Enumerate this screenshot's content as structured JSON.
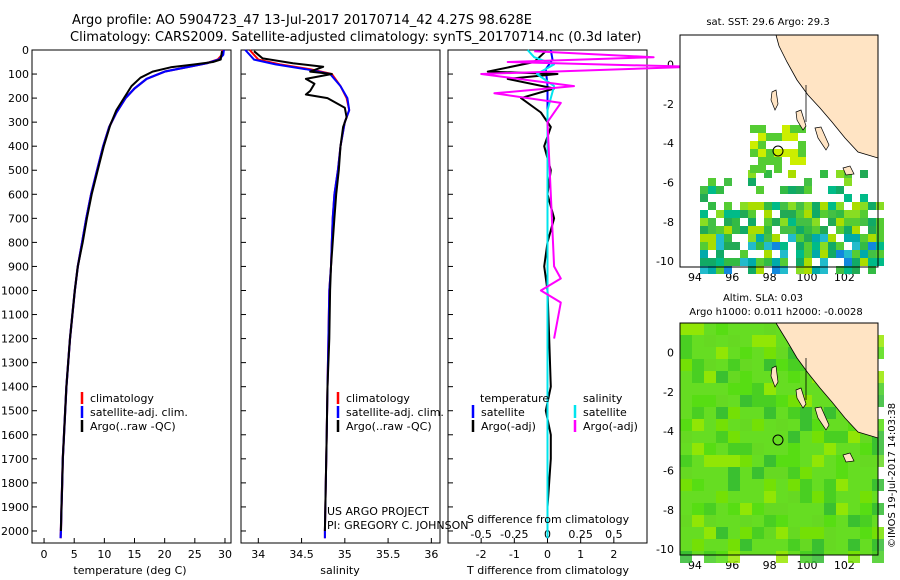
{
  "header": {
    "title_line1": "Argo profile: AO 5904723_47 13-Jul-2017 20170714_42 4.27S 98.628E",
    "title_line2": "Climatology: CARS2009. Satellite-adjusted climatology: synTS_20170714.nc (0.3d later)"
  },
  "colors": {
    "climatology": "#ff0000",
    "satellite_temp": "#0000ff",
    "argo": "#000000",
    "satellite_sal": "#00e5ee",
    "argo_sal_diff": "#ff00ff",
    "land": "#ffe4c4"
  },
  "chart_data": [
    {
      "type": "line",
      "panel": "temperature",
      "xlabel": "temperature (deg C)",
      "xticks": [
        0,
        5,
        10,
        15,
        20,
        25,
        30
      ],
      "xlim": [
        -2,
        31
      ],
      "ylim": [
        2050,
        0
      ],
      "yticks": [
        0,
        100,
        200,
        300,
        400,
        500,
        600,
        700,
        800,
        900,
        1000,
        1100,
        1200,
        1300,
        1400,
        1500,
        1600,
        1700,
        1800,
        1900,
        2000
      ],
      "legend": [
        "climatology",
        "satellite-adj. clim.",
        "Argo(..raw -QC)"
      ],
      "series": [
        {
          "name": "climatology",
          "points": [
            [
              29.6,
              0
            ],
            [
              29.5,
              20
            ],
            [
              28.8,
              40
            ],
            [
              27,
              55
            ],
            [
              24,
              70
            ],
            [
              20,
              90
            ],
            [
              17,
              120
            ],
            [
              15,
              160
            ],
            [
              13.5,
              200
            ],
            [
              12,
              260
            ],
            [
              10.8,
              320
            ],
            [
              9.8,
              400
            ],
            [
              8.8,
              500
            ],
            [
              7.8,
              600
            ],
            [
              7,
              700
            ],
            [
              6.3,
              800
            ],
            [
              5.6,
              900
            ],
            [
              5.1,
              1000
            ],
            [
              4.7,
              1100
            ],
            [
              4.3,
              1200
            ],
            [
              4,
              1300
            ],
            [
              3.7,
              1400
            ],
            [
              3.5,
              1500
            ],
            [
              3.3,
              1600
            ],
            [
              3.1,
              1700
            ],
            [
              3,
              1800
            ],
            [
              2.9,
              1900
            ],
            [
              2.8,
              2000
            ],
            [
              2.75,
              2030
            ]
          ]
        },
        {
          "name": "satellite-adj. clim.",
          "points": [
            [
              29.8,
              0
            ],
            [
              29.7,
              20
            ],
            [
              29,
              40
            ],
            [
              27,
              55
            ],
            [
              24,
              70
            ],
            [
              20,
              90
            ],
            [
              17,
              120
            ],
            [
              15,
              160
            ],
            [
              13.5,
              200
            ],
            [
              12,
              260
            ],
            [
              10.8,
              320
            ],
            [
              9.8,
              400
            ],
            [
              8.8,
              500
            ],
            [
              7.8,
              600
            ],
            [
              7,
              700
            ],
            [
              6.3,
              800
            ],
            [
              5.6,
              900
            ],
            [
              5.1,
              1000
            ],
            [
              4.7,
              1100
            ],
            [
              4.3,
              1200
            ],
            [
              4,
              1300
            ],
            [
              3.7,
              1400
            ],
            [
              3.5,
              1500
            ],
            [
              3.3,
              1600
            ],
            [
              3.1,
              1700
            ],
            [
              3,
              1800
            ],
            [
              2.9,
              1900
            ],
            [
              2.8,
              2000
            ],
            [
              2.75,
              2030
            ]
          ]
        },
        {
          "name": "Argo(..raw -QC)",
          "points": [
            [
              29.5,
              5
            ],
            [
              29.4,
              20
            ],
            [
              29.3,
              40
            ],
            [
              28,
              50
            ],
            [
              25,
              60
            ],
            [
              21,
              72
            ],
            [
              18,
              90
            ],
            [
              16,
              115
            ],
            [
              14.5,
              150
            ],
            [
              13.5,
              190
            ],
            [
              12,
              250
            ],
            [
              11,
              310
            ],
            [
              9.9,
              400
            ],
            [
              8.9,
              500
            ],
            [
              7.9,
              600
            ],
            [
              7.1,
              700
            ],
            [
              6.4,
              800
            ],
            [
              5.6,
              900
            ],
            [
              5.1,
              1000
            ],
            [
              4.7,
              1100
            ],
            [
              4.3,
              1200
            ],
            [
              4,
              1300
            ],
            [
              3.7,
              1400
            ],
            [
              3.5,
              1500
            ],
            [
              3.3,
              1600
            ],
            [
              3.1,
              1700
            ],
            [
              3,
              1800
            ],
            [
              2.9,
              1900
            ],
            [
              2.8,
              2000
            ]
          ]
        }
      ]
    },
    {
      "type": "line",
      "panel": "salinity",
      "xlabel": "salinity",
      "xticks": [
        34,
        34.5,
        35,
        35.5,
        36
      ],
      "xlim": [
        33.8,
        36.1
      ],
      "ylim": [
        2050,
        0
      ],
      "legend": [
        "climatology",
        "satellite-adj. clim.",
        "Argo(..raw -QC)"
      ],
      "annotation": [
        "US ARGO PROJECT",
        "PI: GREGORY C. JOHNSON"
      ],
      "series": [
        {
          "name": "climatology",
          "points": [
            [
              33.9,
              0
            ],
            [
              33.95,
              20
            ],
            [
              34,
              40
            ],
            [
              34.25,
              60
            ],
            [
              34.6,
              80
            ],
            [
              34.85,
              100
            ],
            [
              34.95,
              150
            ],
            [
              35.02,
              200
            ],
            [
              35.05,
              250
            ],
            [
              35,
              300
            ],
            [
              34.95,
              400
            ],
            [
              34.92,
              500
            ],
            [
              34.88,
              600
            ],
            [
              34.86,
              700
            ],
            [
              34.85,
              800
            ],
            [
              34.84,
              900
            ],
            [
              34.82,
              1000
            ],
            [
              34.81,
              1200
            ],
            [
              34.8,
              1400
            ],
            [
              34.79,
              1600
            ],
            [
              34.78,
              1800
            ],
            [
              34.77,
              2000
            ],
            [
              34.77,
              2030
            ]
          ]
        },
        {
          "name": "satellite-adj. clim.",
          "points": [
            [
              33.85,
              0
            ],
            [
              33.9,
              20
            ],
            [
              33.95,
              40
            ],
            [
              34.2,
              60
            ],
            [
              34.55,
              80
            ],
            [
              34.83,
              100
            ],
            [
              34.95,
              150
            ],
            [
              35.03,
              200
            ],
            [
              35.05,
              250
            ],
            [
              35,
              300
            ],
            [
              34.95,
              400
            ],
            [
              34.92,
              500
            ],
            [
              34.88,
              600
            ],
            [
              34.86,
              700
            ],
            [
              34.85,
              800
            ],
            [
              34.84,
              900
            ],
            [
              34.82,
              1000
            ],
            [
              34.81,
              1200
            ],
            [
              34.8,
              1400
            ],
            [
              34.79,
              1600
            ],
            [
              34.78,
              1800
            ],
            [
              34.77,
              2000
            ],
            [
              34.77,
              2030
            ]
          ]
        },
        {
          "name": "Argo(..raw -QC)",
          "points": [
            [
              33.95,
              5
            ],
            [
              34,
              20
            ],
            [
              34.05,
              35
            ],
            [
              34.4,
              55
            ],
            [
              34.75,
              70
            ],
            [
              34.6,
              90
            ],
            [
              34.85,
              100
            ],
            [
              34.55,
              120
            ],
            [
              34.65,
              140
            ],
            [
              34.6,
              170
            ],
            [
              34.55,
              185
            ],
            [
              34.8,
              200
            ],
            [
              35,
              240
            ],
            [
              35.02,
              280
            ],
            [
              34.98,
              320
            ],
            [
              34.95,
              400
            ],
            [
              34.93,
              500
            ],
            [
              34.9,
              600
            ],
            [
              34.88,
              700
            ],
            [
              34.86,
              800
            ],
            [
              34.84,
              900
            ],
            [
              34.83,
              1000
            ],
            [
              34.82,
              1200
            ],
            [
              34.8,
              1400
            ],
            [
              34.79,
              1600
            ],
            [
              34.78,
              1800
            ],
            [
              34.77,
              2000
            ]
          ]
        }
      ]
    },
    {
      "type": "line",
      "panel": "difference",
      "xlabel_bottom": "T difference from climatology",
      "xlabel_top": "S difference from climatology",
      "xticks_T": [
        -2,
        -1,
        0,
        1,
        2
      ],
      "xticks_S": [
        -0.5,
        -0.25,
        0,
        0.25,
        0.5
      ],
      "xlim_T": [
        -3,
        3
      ],
      "ylim": [
        2050,
        0
      ],
      "legend_T_title": "temperature",
      "legend_S_title": "salinity",
      "legend": [
        "satellite",
        "Argo(-adj)",
        "satellite",
        "Argo(-adj)"
      ],
      "series": [
        {
          "name": "satellite",
          "quantity": "temperature",
          "points": [
            [
              0.1,
              0
            ],
            [
              0.15,
              40
            ],
            [
              -0.05,
              80
            ],
            [
              0,
              150
            ],
            [
              0,
              300
            ],
            [
              0,
              600
            ],
            [
              0,
              1000
            ],
            [
              0,
              1500
            ],
            [
              0,
              2030
            ]
          ]
        },
        {
          "name": "Argo(-adj)",
          "quantity": "temperature",
          "points": [
            [
              -0.05,
              5
            ],
            [
              -0.4,
              50
            ],
            [
              -1.8,
              90
            ],
            [
              0.3,
              100
            ],
            [
              -1.2,
              120
            ],
            [
              0.2,
              160
            ],
            [
              -0.8,
              200
            ],
            [
              -0.2,
              260
            ],
            [
              0.1,
              320
            ],
            [
              -0.1,
              400
            ],
            [
              0.1,
              500
            ],
            [
              0,
              600
            ],
            [
              0.2,
              700
            ],
            [
              0,
              800
            ],
            [
              -0.1,
              900
            ],
            [
              0,
              1000
            ],
            [
              0.05,
              1200
            ],
            [
              0.1,
              1400
            ],
            [
              -0.05,
              1500
            ],
            [
              0.1,
              1600
            ],
            [
              0.1,
              1700
            ],
            [
              0,
              1900
            ],
            [
              0,
              2000
            ]
          ]
        },
        {
          "name": "satellite",
          "quantity": "salinity",
          "points": [
            [
              -0.15,
              0
            ],
            [
              -0.1,
              30
            ],
            [
              0.05,
              60
            ],
            [
              -0.08,
              100
            ],
            [
              0.05,
              150
            ],
            [
              0,
              250
            ],
            [
              0,
              500
            ],
            [
              0,
              1000
            ],
            [
              0,
              2030
            ]
          ]
        },
        {
          "name": "Argo(-adj)",
          "quantity": "salinity",
          "points": [
            [
              -0.1,
              5
            ],
            [
              0.8,
              30
            ],
            [
              -0.3,
              50
            ],
            [
              1.1,
              70
            ],
            [
              -0.5,
              100
            ],
            [
              0.2,
              150
            ],
            [
              -0.4,
              180
            ],
            [
              0.1,
              220
            ],
            [
              0,
              300
            ],
            [
              0.05,
              900
            ],
            [
              0.1,
              950
            ],
            [
              -0.05,
              1000
            ],
            [
              0.1,
              1050
            ],
            [
              0.05,
              1200
            ]
          ]
        }
      ]
    },
    {
      "type": "heatmap",
      "panel": "sat_sst_map",
      "title": "sat. SST: 29.6 Argo: 29.3",
      "xticks": [
        94,
        96,
        98,
        100,
        102
      ],
      "yticks": [
        0,
        -2,
        -4,
        -6,
        -8,
        -10
      ],
      "xlim": [
        93.2,
        103.8
      ],
      "ylim": [
        -10.3,
        1.5
      ],
      "argo_position": {
        "lon": 98.628,
        "lat": -4.27
      }
    },
    {
      "type": "heatmap",
      "panel": "altim_sla_map",
      "title_line1": "Altim. SLA: 0.03",
      "title_line2": "Argo h1000: 0.011 h2000: -0.0028",
      "xticks": [
        94,
        96,
        98,
        100,
        102
      ],
      "yticks": [
        0,
        -2,
        -4,
        -6,
        -8,
        -10
      ],
      "xlim": [
        93.2,
        103.8
      ],
      "ylim": [
        -10.3,
        1.5
      ],
      "argo_position": {
        "lon": 98.628,
        "lat": -4.27
      }
    }
  ],
  "footer": {
    "stamp": "©IMOS 19-Jul-2017 14:03:38"
  }
}
